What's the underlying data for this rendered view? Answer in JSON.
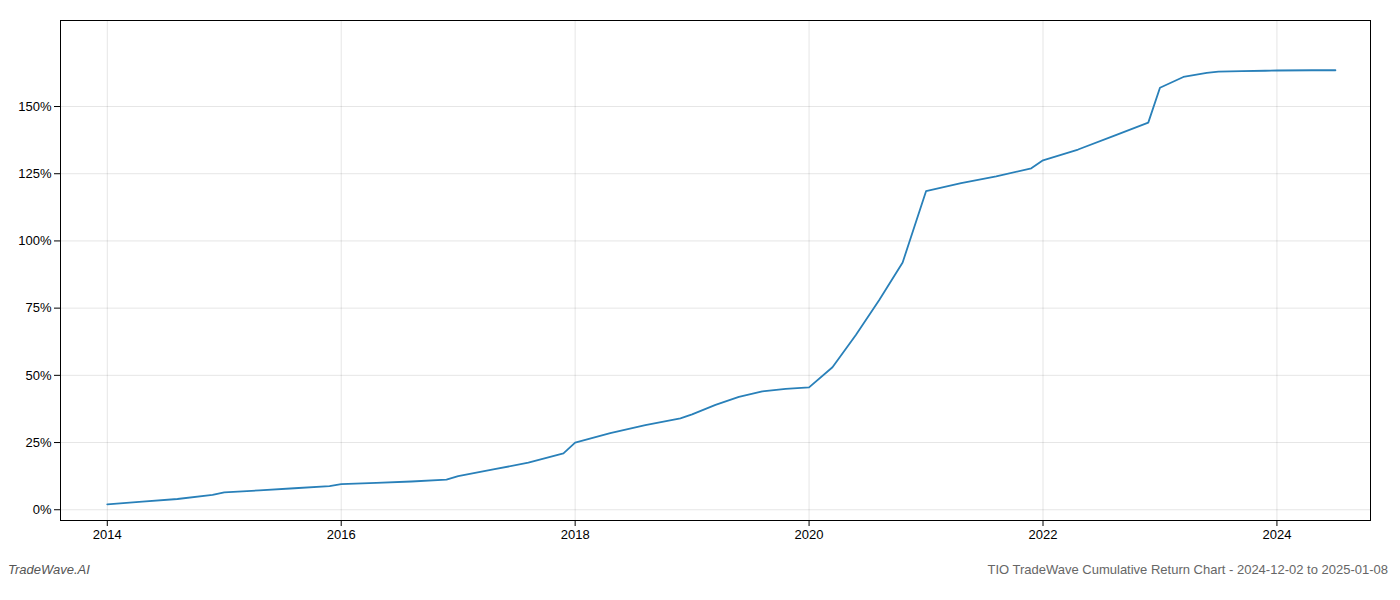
{
  "chart_data": {
    "type": "line",
    "title": "TIO TradeWave Cumulative Return Chart - 2024-12-02 to 2025-01-08",
    "annotations": [
      "TradeWave.AI"
    ],
    "x": [
      2014.0,
      2014.3,
      2014.6,
      2014.9,
      2015.0,
      2015.3,
      2015.6,
      2015.9,
      2016.0,
      2016.3,
      2016.6,
      2016.9,
      2017.0,
      2017.3,
      2017.6,
      2017.9,
      2018.0,
      2018.3,
      2018.6,
      2018.9,
      2019.0,
      2019.2,
      2019.4,
      2019.6,
      2019.8,
      2020.0,
      2020.2,
      2020.4,
      2020.6,
      2020.8,
      2021.0,
      2021.3,
      2021.6,
      2021.9,
      2022.0,
      2022.3,
      2022.6,
      2022.9,
      2023.0,
      2023.2,
      2023.4,
      2023.5,
      2023.7,
      2023.9,
      2024.0,
      2024.3,
      2024.5
    ],
    "values": [
      0.02,
      0.03,
      0.04,
      0.055,
      0.065,
      0.072,
      0.08,
      0.088,
      0.095,
      0.1,
      0.105,
      0.112,
      0.125,
      0.15,
      0.175,
      0.21,
      0.25,
      0.285,
      0.315,
      0.34,
      0.355,
      0.39,
      0.42,
      0.44,
      0.45,
      0.455,
      0.53,
      0.65,
      0.78,
      0.92,
      1.185,
      1.215,
      1.24,
      1.27,
      1.3,
      1.34,
      1.39,
      1.44,
      1.57,
      1.61,
      1.625,
      1.63,
      1.632,
      1.633,
      1.634,
      1.635,
      1.635
    ],
    "color": "#2980b9",
    "xlim": [
      2013.6,
      2024.8
    ],
    "ylim": [
      -0.04,
      1.82
    ],
    "xticks": [
      2014,
      2016,
      2018,
      2020,
      2022,
      2024
    ],
    "yticks": [
      {
        "value": 0.0,
        "label": "0%"
      },
      {
        "value": 0.25,
        "label": "25%"
      },
      {
        "value": 0.5,
        "label": "50%"
      },
      {
        "value": 0.75,
        "label": "75%"
      },
      {
        "value": 1.0,
        "label": "100%"
      },
      {
        "value": 1.25,
        "label": "125%"
      },
      {
        "value": 1.5,
        "label": "150%"
      }
    ],
    "grid": true
  }
}
